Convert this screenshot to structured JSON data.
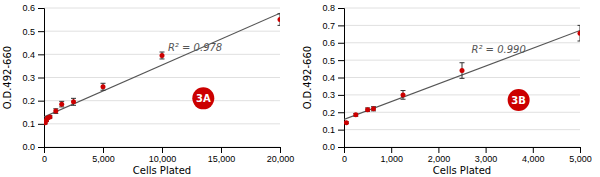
{
  "chart_data": [
    {
      "type": "scatter",
      "xlabel": "Cells Plated",
      "ylabel": "O.D.492-660",
      "series": [
        {
          "type": "line",
          "color": "#555555",
          "x": [
            0,
            20000
          ],
          "values": [
            0.1294,
            0.5776
          ]
        },
        {
          "type": "scatter",
          "color": "#cc0000",
          "x": [
            100,
            200,
            300,
            500,
            1000,
            1500,
            2500,
            5000,
            10000,
            20000
          ],
          "values": [
            0.105,
            0.115,
            0.125,
            0.13,
            0.155,
            0.185,
            0.195,
            0.26,
            0.395,
            0.55
          ],
          "errors": [
            0.005,
            0.005,
            0.005,
            0.005,
            0.01,
            0.012,
            0.015,
            0.015,
            0.015,
            0.025
          ]
        }
      ],
      "xlim": [
        0,
        20000
      ],
      "ylim": [
        0,
        0.6
      ],
      "xticks": [
        0,
        {
          "value": 5000,
          "label": "5,000"
        },
        {
          "value": 10000,
          "label": "10,000"
        },
        {
          "value": 15000,
          "label": "15,000"
        },
        {
          "value": 20000,
          "label": "20,000"
        }
      ],
      "yticks": [
        {
          "value": 0,
          "label": "0.0"
        },
        0.1,
        0.2,
        0.3,
        0.4,
        0.5,
        0.6
      ],
      "grid": true,
      "annotations": [
        {
          "text": "R² = 0.978",
          "x": 10500,
          "y": 0.43
        },
        {
          "text": "3A",
          "x": 13500,
          "y": 0.21,
          "color": "#cc0000"
        }
      ]
    },
    {
      "type": "scatter",
      "xlabel": "Cells Plated",
      "ylabel": "O.D.492-660",
      "series": [
        {
          "type": "line",
          "color": "#555555",
          "x": [
            0,
            5000
          ],
          "values": [
            0.1592,
            0.6706
          ]
        },
        {
          "type": "scatter",
          "color": "#cc0000",
          "x": [
            50,
            250,
            500,
            625,
            1250,
            2500,
            5000
          ],
          "values": [
            0.14,
            0.185,
            0.215,
            0.22,
            0.3,
            0.44,
            0.655
          ],
          "errors": [
            0.005,
            0.008,
            0.01,
            0.012,
            0.025,
            0.045,
            0.045
          ]
        }
      ],
      "xlim": [
        0,
        5000
      ],
      "ylim": [
        0,
        0.8
      ],
      "xticks": [
        0,
        {
          "value": 1000,
          "label": "1,000"
        },
        {
          "value": 2000,
          "label": "2,000"
        },
        {
          "value": 3000,
          "label": "3,000"
        },
        {
          "value": 4000,
          "label": "4,000"
        },
        {
          "value": 5000,
          "label": "5,000"
        }
      ],
      "yticks": [
        {
          "value": 0,
          "label": "0.0"
        },
        0.1,
        0.2,
        0.3,
        0.4,
        0.5,
        0.6,
        0.7,
        0.8
      ],
      "grid": true,
      "annotations": [
        {
          "text": "R² = 0.990",
          "x": 2700,
          "y": 0.56
        },
        {
          "text": "3B",
          "x": 3700,
          "y": 0.27,
          "color": "#cc0000"
        }
      ]
    }
  ]
}
